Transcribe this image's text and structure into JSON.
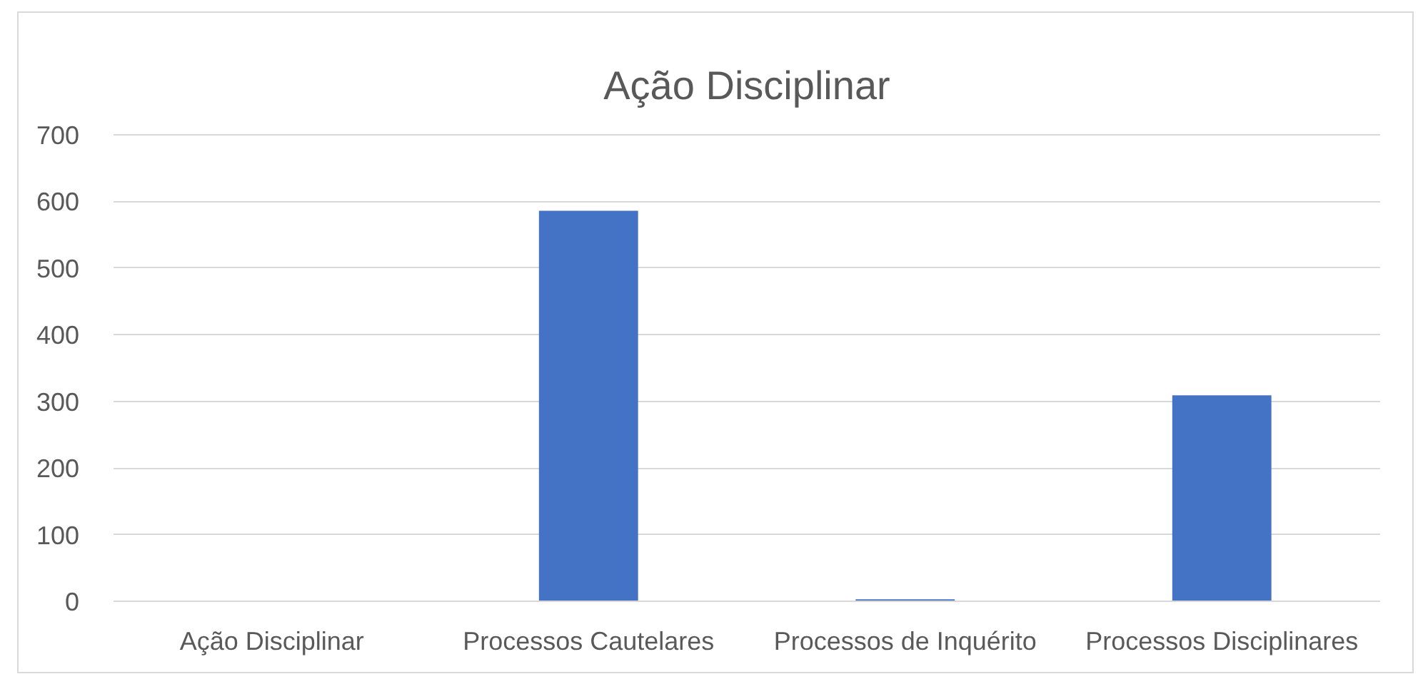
{
  "chart_data": {
    "type": "bar",
    "title": "Ação Disciplinar",
    "categories": [
      "Ação Disciplinar",
      "Processos Cautelares",
      "Processos de Inquérito",
      "Processos Disciplinares"
    ],
    "values": [
      0,
      586,
      3,
      309
    ],
    "color": "#4472c4",
    "ylim": [
      0,
      700
    ],
    "yticks": [
      0,
      100,
      200,
      300,
      400,
      500,
      600,
      700
    ],
    "grid": "y"
  }
}
